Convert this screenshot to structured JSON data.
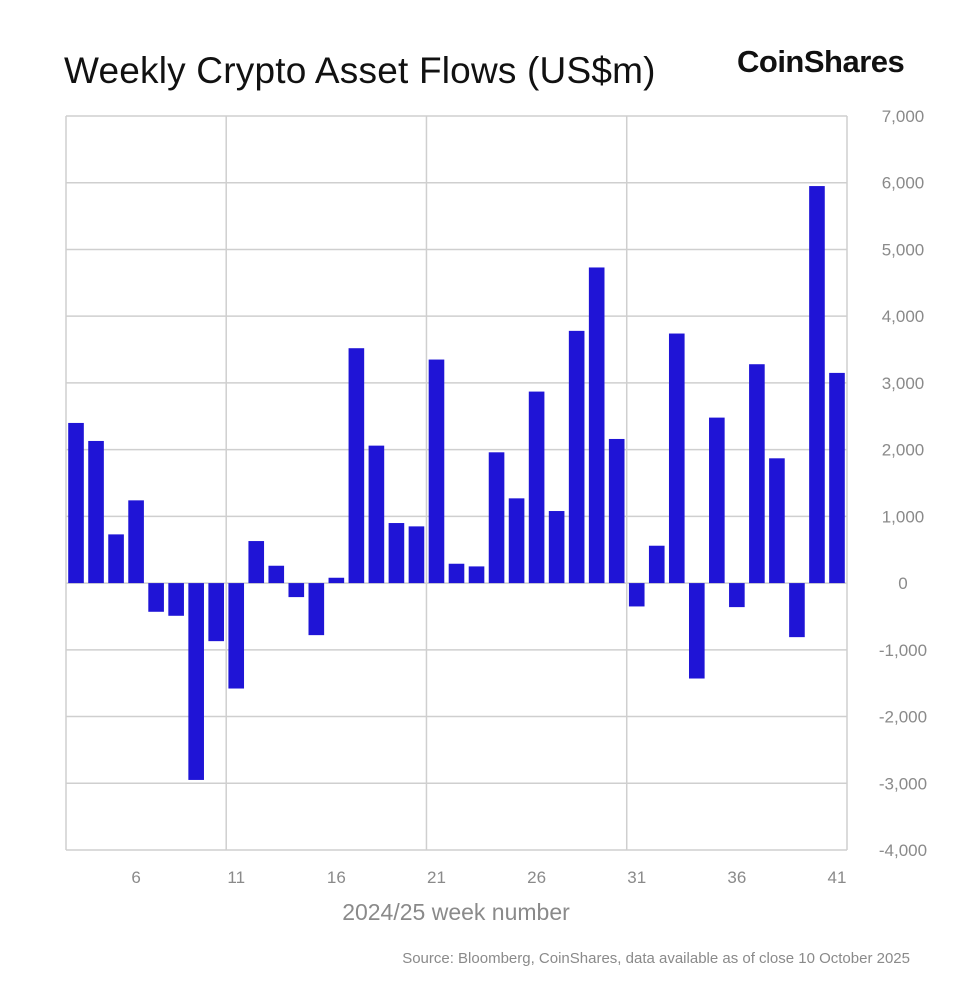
{
  "header": {
    "title": "Weekly Crypto Asset Flows (US$m)",
    "brand": "CoinShares"
  },
  "footer": {
    "source": "Source: Bloomberg, CoinShares, data available as of close 10 October 2025"
  },
  "colors": {
    "bar": "#1f14d6",
    "grid": "#cfcfcf",
    "tick_text": "#8a8a8a",
    "title_text": "#111111"
  },
  "chart_data": {
    "type": "bar",
    "title": "Weekly Crypto Asset Flows (US$m)",
    "xlabel": "2024/25 week number",
    "ylabel": "",
    "x": [
      3,
      4,
      5,
      6,
      7,
      8,
      9,
      10,
      11,
      12,
      13,
      14,
      15,
      16,
      17,
      18,
      19,
      20,
      21,
      22,
      23,
      24,
      25,
      26,
      27,
      28,
      29,
      30,
      31,
      32,
      33,
      34,
      35,
      36,
      37,
      38,
      39,
      40,
      41
    ],
    "values": [
      2400,
      2130,
      730,
      1240,
      -430,
      -490,
      -2950,
      -870,
      -1580,
      630,
      260,
      -210,
      -780,
      80,
      3520,
      2060,
      900,
      850,
      3350,
      290,
      250,
      1960,
      1270,
      2870,
      1080,
      3780,
      4730,
      2160,
      -350,
      560,
      3740,
      -1430,
      2480,
      -360,
      3280,
      1870,
      -810,
      5950,
      3150
    ],
    "x_ticks": [
      6,
      11,
      16,
      21,
      26,
      31,
      36,
      41
    ],
    "ylim": [
      -4000,
      7000
    ],
    "y_ticks": [
      7000,
      6000,
      5000,
      4000,
      3000,
      2000,
      1000,
      0,
      -1000,
      -2000,
      -3000,
      -4000
    ],
    "y_tick_labels": [
      "7,000",
      "6,000",
      "5,000",
      "4,000",
      "3,000",
      "2,000",
      "1,000",
      "0",
      "-1,000",
      "-2,000",
      "-3,000",
      "-4,000"
    ],
    "y_axis_side": "right",
    "grid": true,
    "legend": "none"
  }
}
